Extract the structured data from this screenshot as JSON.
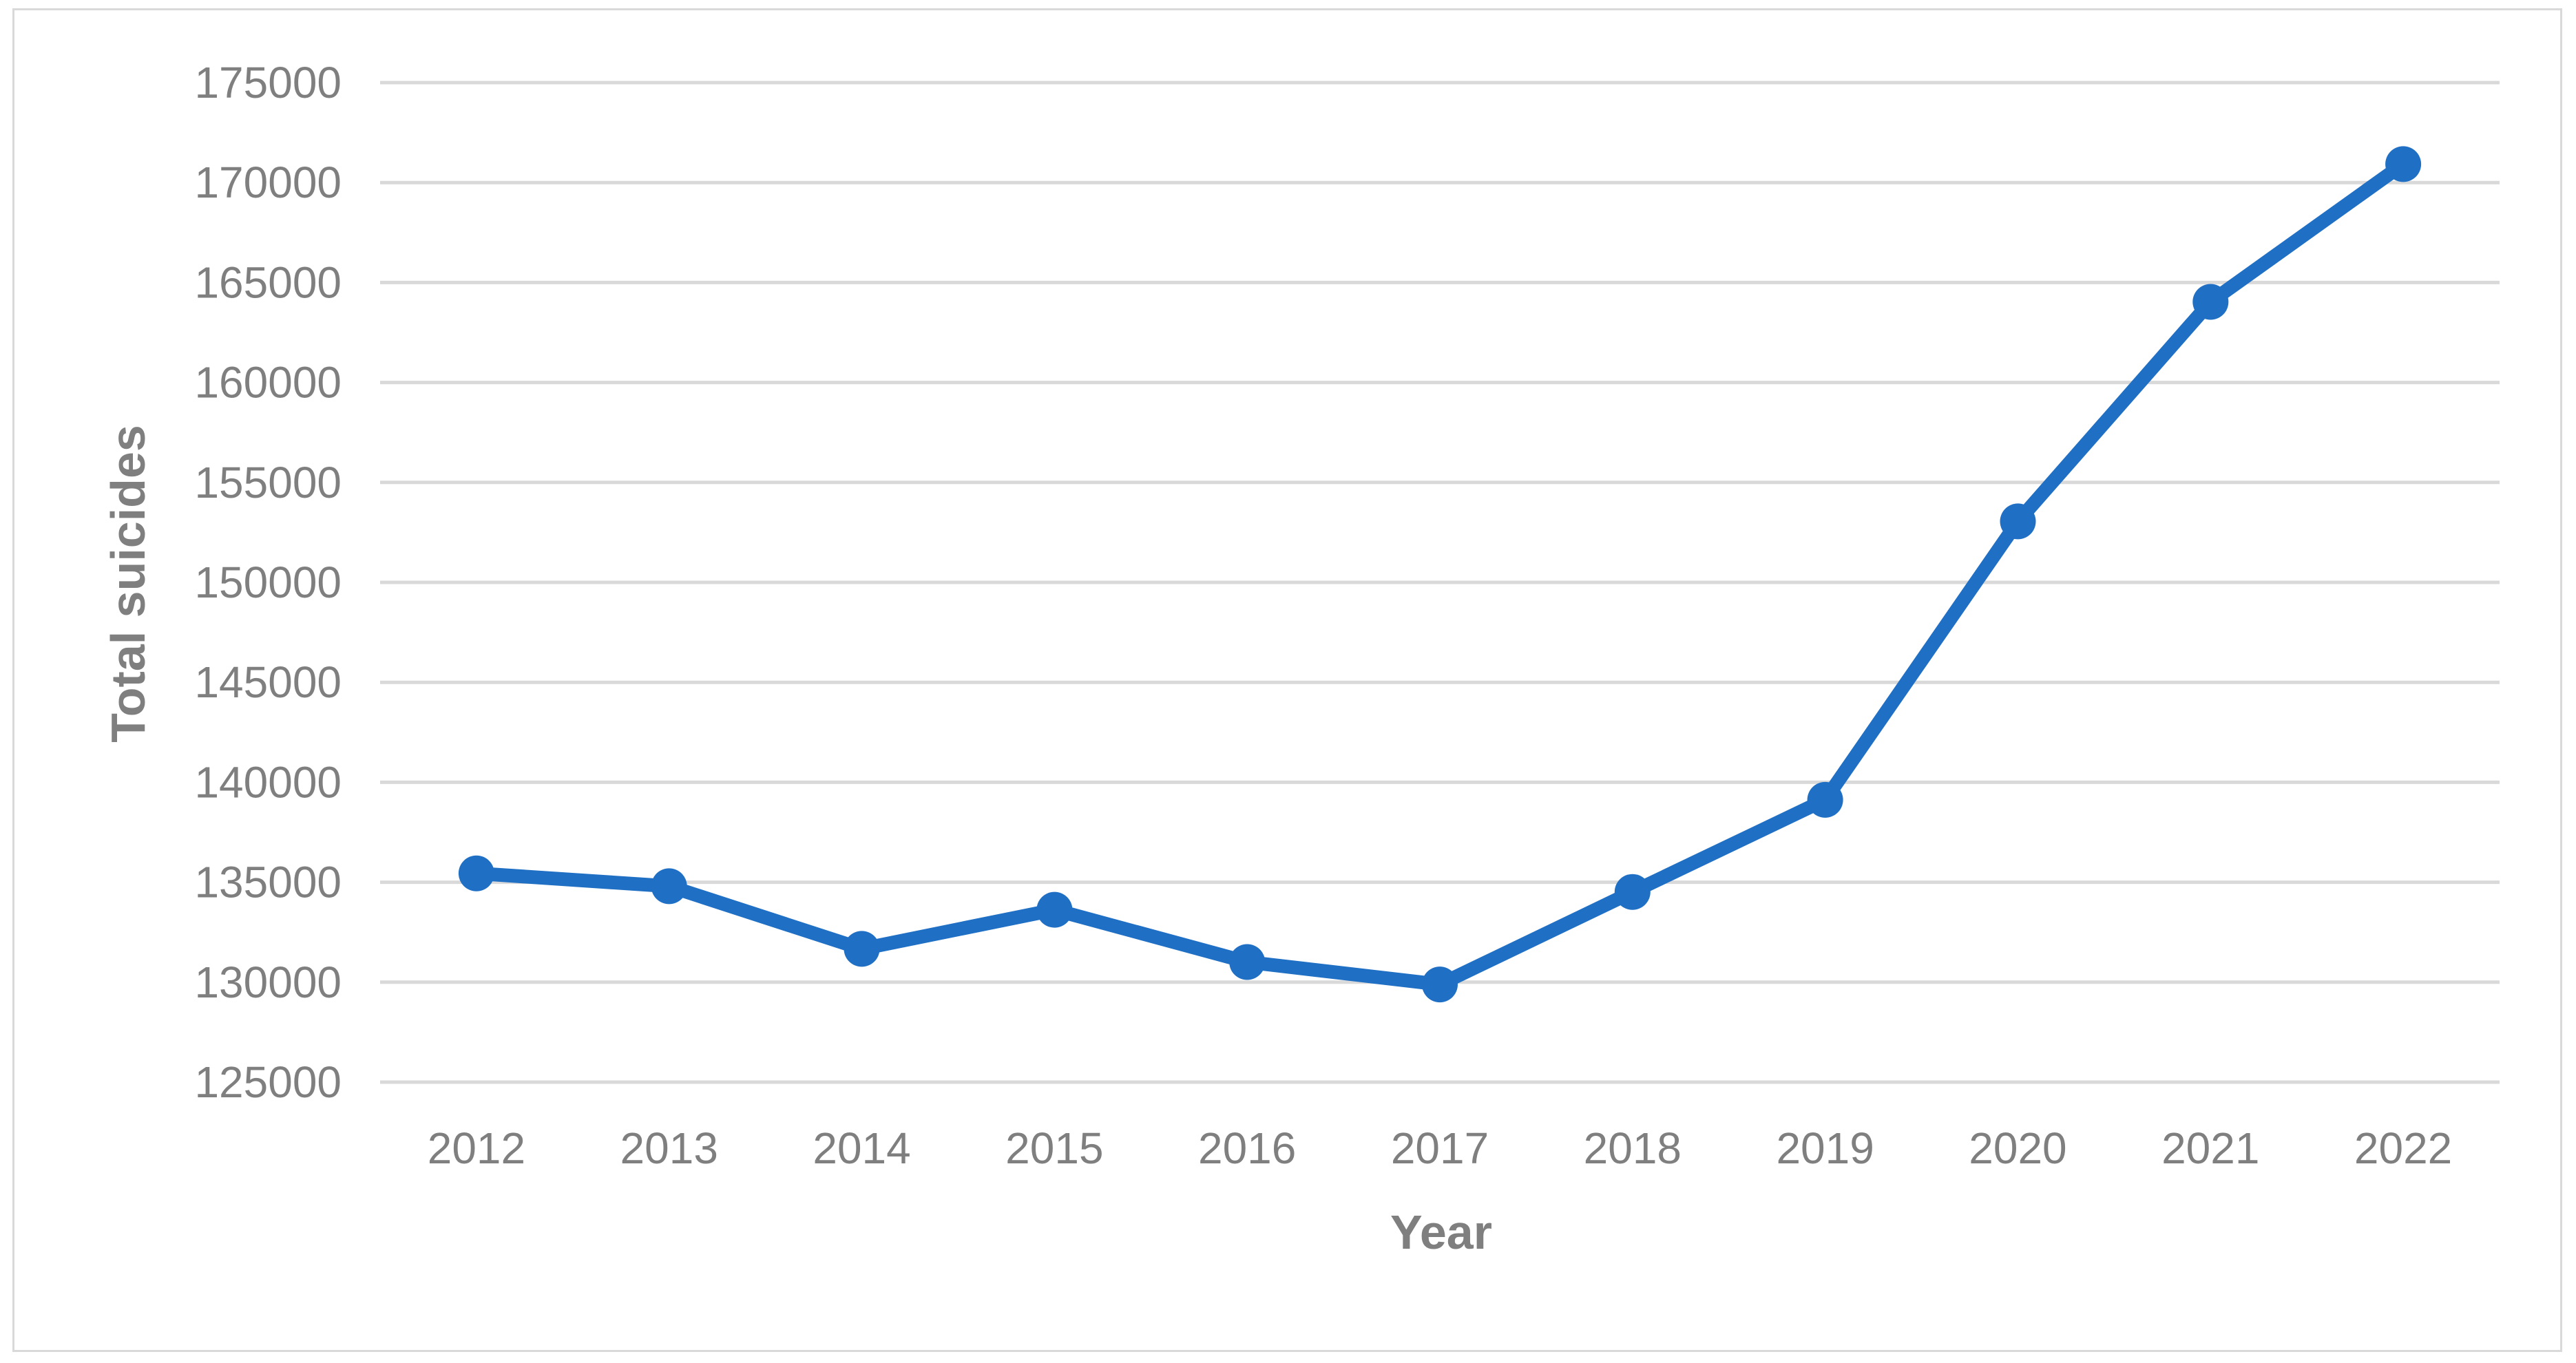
{
  "chart_data": {
    "type": "line",
    "title": "",
    "xlabel": "Year",
    "ylabel": "Total suicides",
    "categories": [
      "2012",
      "2013",
      "2014",
      "2015",
      "2016",
      "2017",
      "2018",
      "2019",
      "2020",
      "2021",
      "2022"
    ],
    "series": [
      {
        "values": [
          135445,
          134799,
          131666,
          133623,
          131008,
          129887,
          134516,
          139123,
          153052,
          164033,
          170924
        ]
      }
    ],
    "ylim": [
      125000,
      175000
    ],
    "yticks": [
      "125000",
      "130000",
      "135000",
      "140000",
      "145000",
      "150000",
      "155000",
      "160000",
      "165000",
      "170000",
      "175000"
    ],
    "grid": "horizontal",
    "legend": "none",
    "colors": {
      "series": "#1f6fc5",
      "grid": "#d9d9d9",
      "text": "#7f7f7f",
      "border": "#d9d9d9"
    }
  }
}
